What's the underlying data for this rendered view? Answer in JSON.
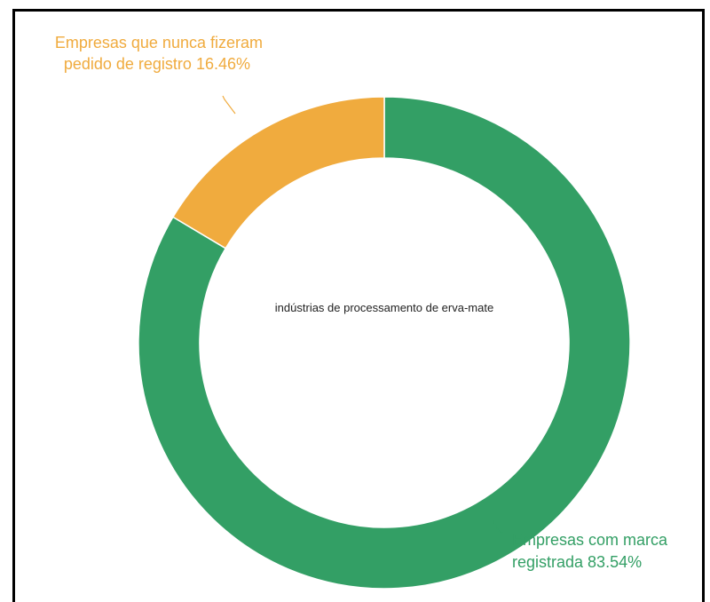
{
  "chart_data": {
    "type": "pie",
    "center_label": "indústrias de processamento de erva-mate",
    "slices": [
      {
        "label_line1": "Empresas com marca",
        "label_line2": "registrada 83.54%",
        "value": 83.54,
        "color": "#339f65"
      },
      {
        "label_line1": "Empresas que nunca fizeram",
        "label_line2": "pedido de registro 16.46%",
        "value": 16.46,
        "color": "#f0ab3e"
      }
    ]
  }
}
